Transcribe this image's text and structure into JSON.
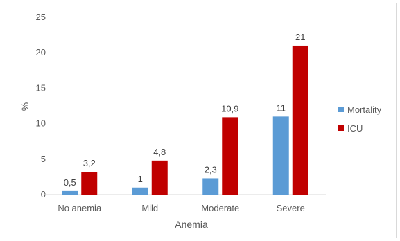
{
  "chart_data": {
    "type": "bar",
    "categories": [
      "No anemia",
      "Mild",
      "Moderate",
      "Severe"
    ],
    "series": [
      {
        "name": "Mortality",
        "values": [
          0.5,
          1,
          2.3,
          11
        ],
        "labels": [
          "0,5",
          "1",
          "2,3",
          "11"
        ],
        "color": "#5b9bd5"
      },
      {
        "name": "ICU",
        "values": [
          3.2,
          4.8,
          10.9,
          21
        ],
        "labels": [
          "3,2",
          "4,8",
          "10,9",
          "21"
        ],
        "color": "#c00000"
      }
    ],
    "xlabel": "Anemia",
    "ylabel": "%",
    "ylim": [
      0,
      25
    ],
    "yticks": [
      0,
      5,
      10,
      15,
      20,
      25
    ],
    "grid": false,
    "legend_position": "right"
  }
}
